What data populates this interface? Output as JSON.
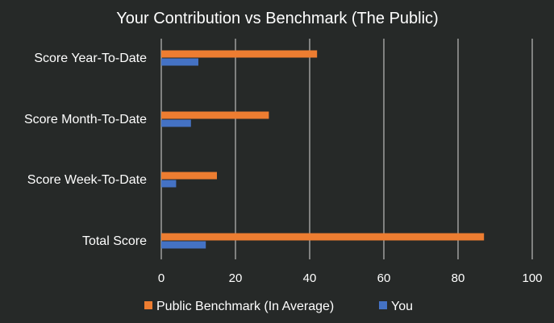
{
  "chart_data": {
    "type": "bar",
    "orientation": "horizontal",
    "title": "Your Contribution  vs Benchmark (The Public)",
    "categories": [
      "Score Year-To-Date",
      "Score Month-To-Date",
      "Score Week-To-Date",
      "Total Score"
    ],
    "series": [
      {
        "name": "Public Benchmark (In Average)",
        "color": "#ED7D31",
        "values": [
          42,
          29,
          15,
          87
        ]
      },
      {
        "name": "You",
        "color": "#4472C4",
        "values": [
          10,
          8,
          4,
          12
        ]
      }
    ],
    "xlim": [
      0,
      100
    ],
    "xticks": [
      0,
      20,
      40,
      60,
      80,
      100
    ],
    "grid": true,
    "legend_position": "bottom"
  }
}
